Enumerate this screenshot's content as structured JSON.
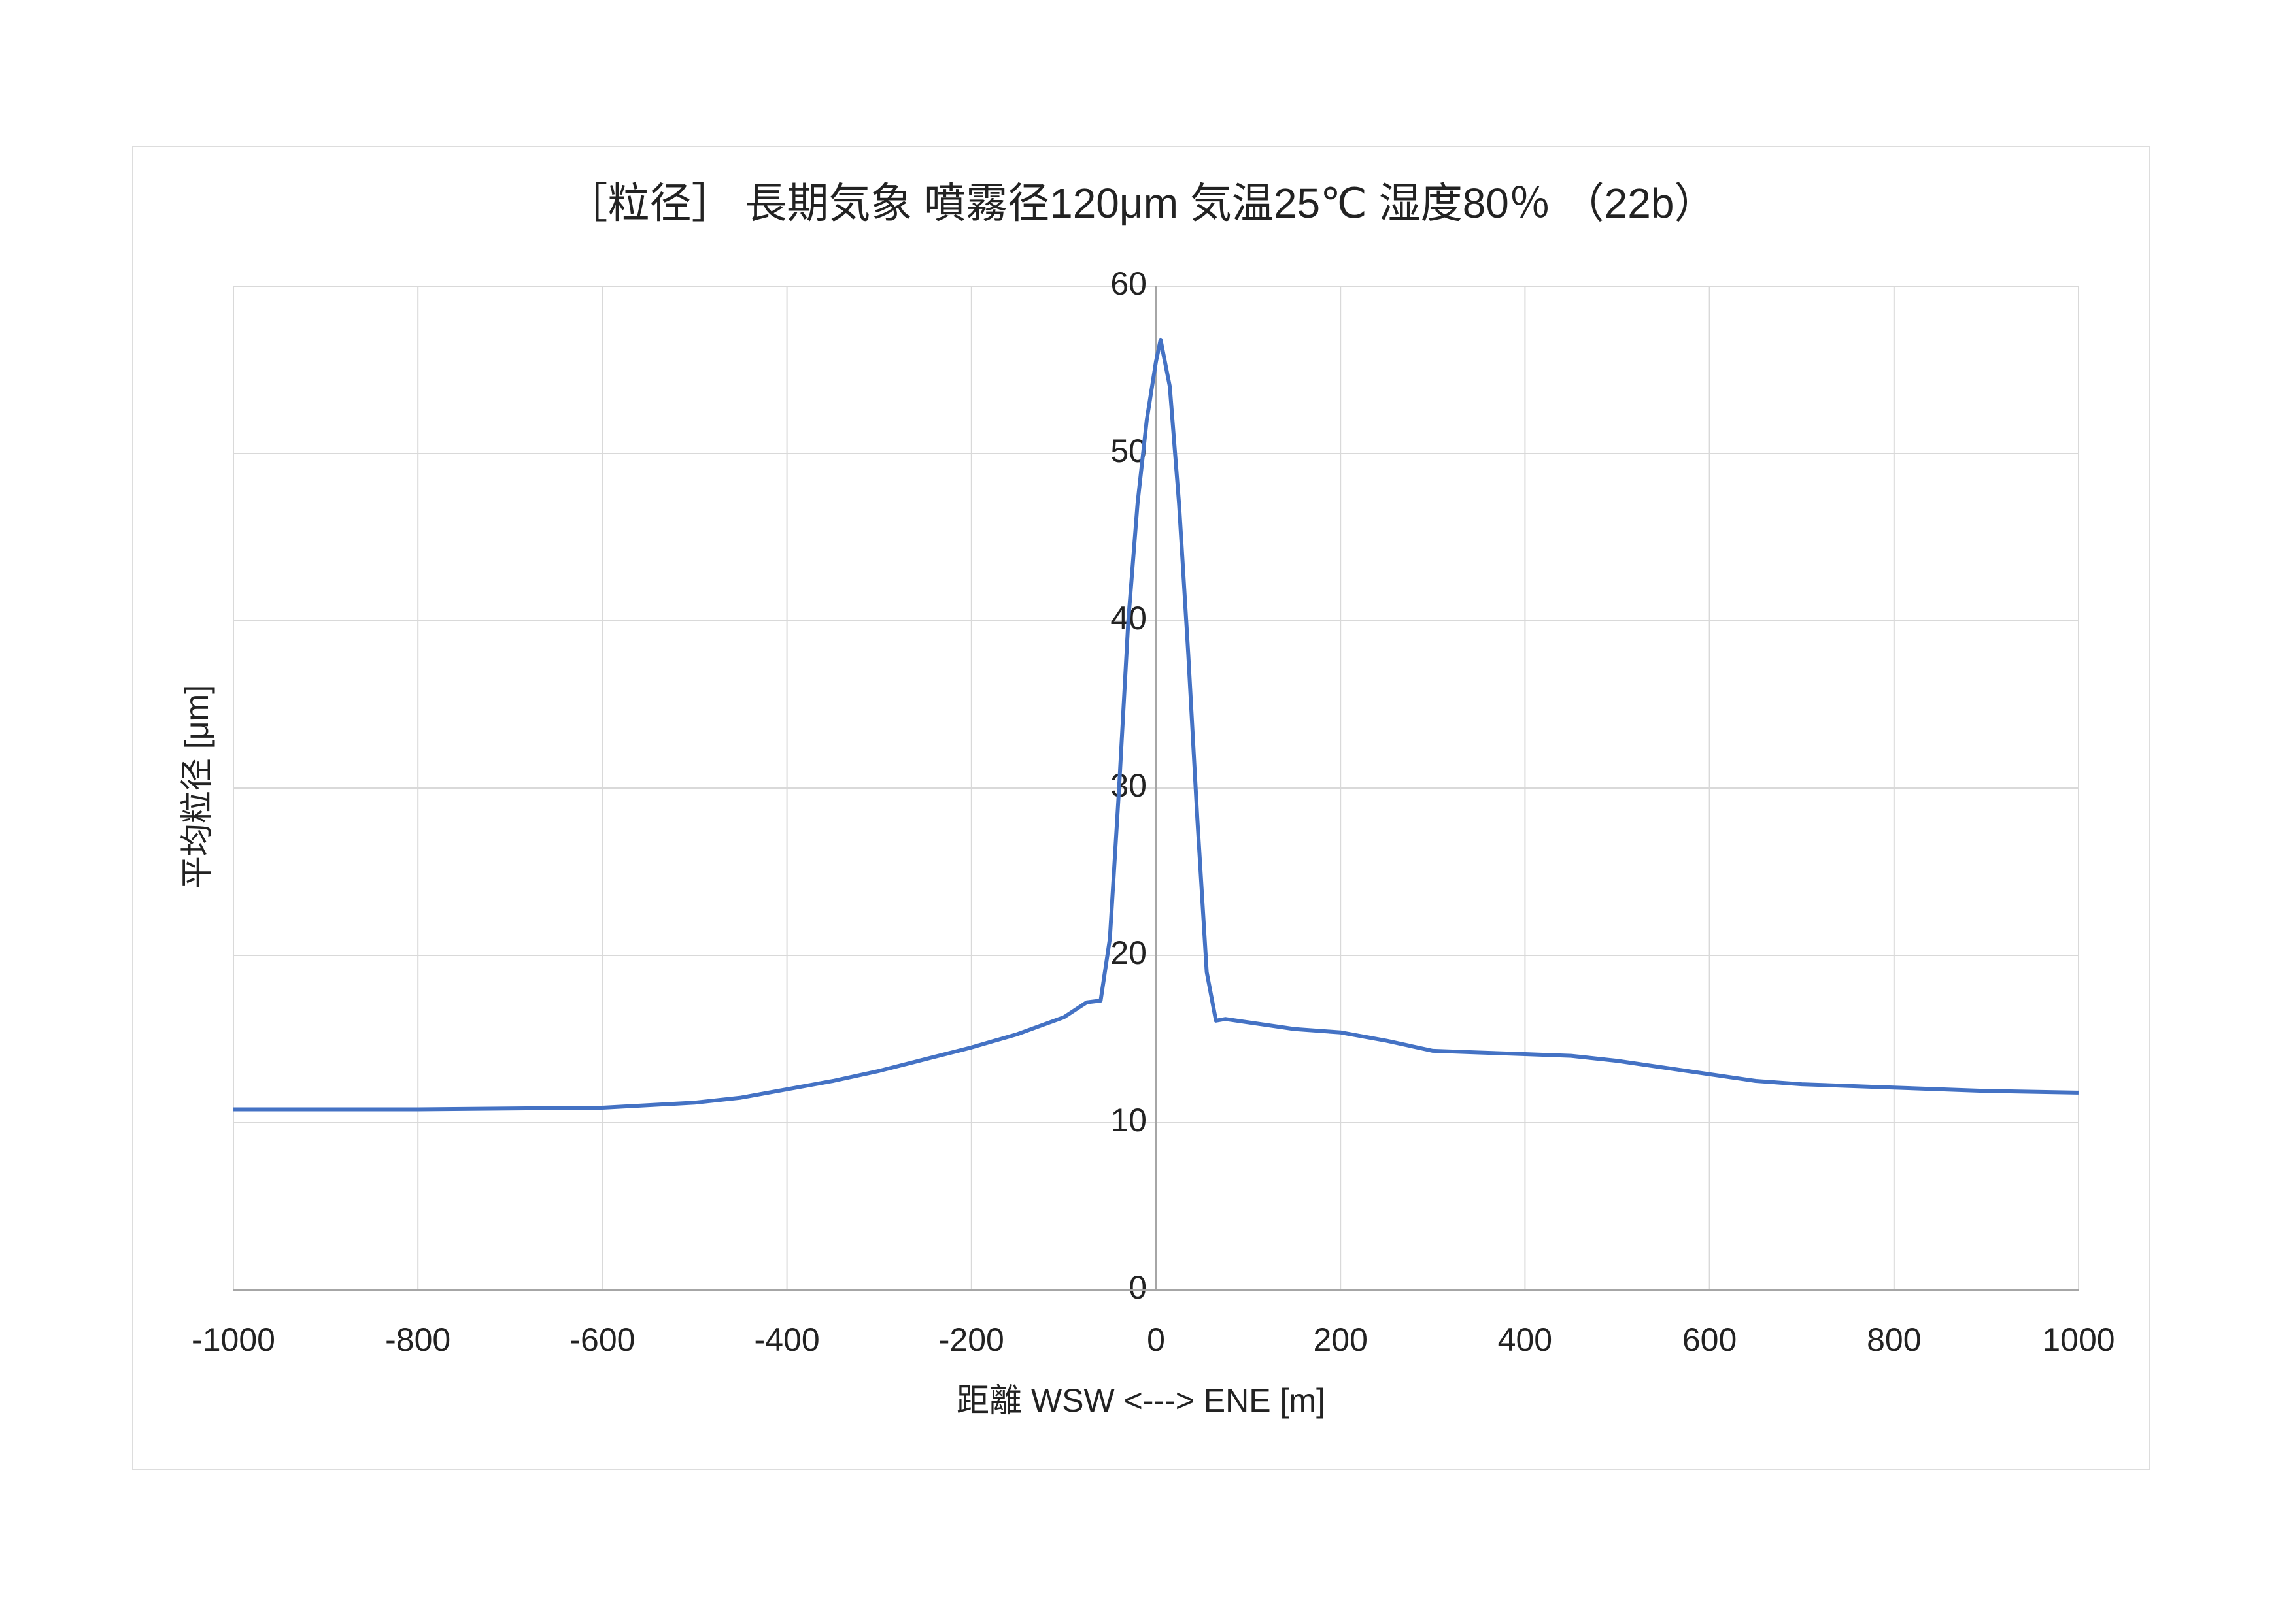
{
  "chart_data": {
    "type": "line",
    "title": "［粒径］ 長期気象  噴霧径120μm  気温25℃  湿度80％  （22b）",
    "x_label": "距離  WSW <---> ENE [m]",
    "y_label": "平均粒径 [μm]",
    "x": [
      -1000,
      -800,
      -600,
      -500,
      -450,
      -400,
      -350,
      -300,
      -250,
      -200,
      -150,
      -100,
      -75,
      -60,
      -50,
      -40,
      -30,
      -20,
      -10,
      0,
      5,
      15,
      25,
      35,
      45,
      55,
      65,
      75,
      100,
      150,
      200,
      250,
      300,
      350,
      400,
      450,
      500,
      550,
      600,
      650,
      700,
      800,
      900,
      1000
    ],
    "series": [
      {
        "name": "平均粒径",
        "color": "#4472c4",
        "values": [
          10.8,
          10.8,
          10.9,
          11.2,
          11.5,
          12.0,
          12.5,
          13.1,
          13.8,
          14.5,
          15.3,
          16.3,
          17.2,
          17.3,
          21,
          30,
          40,
          47,
          52,
          55.5,
          56.8,
          54,
          47,
          38,
          28,
          19,
          16.1,
          16.2,
          16.0,
          15.6,
          15.4,
          14.9,
          14.3,
          14.2,
          14.1,
          14.0,
          13.7,
          13.3,
          12.9,
          12.5,
          12.3,
          12.1,
          11.9,
          11.8
        ]
      }
    ],
    "xlim": [
      -1000,
      1000
    ],
    "xticks": [
      -1000,
      -800,
      -600,
      -400,
      -200,
      0,
      200,
      400,
      600,
      800,
      1000
    ],
    "ylim": [
      0,
      60
    ],
    "yticks": [
      0,
      10,
      20,
      30,
      40,
      50,
      60
    ],
    "grid": true
  }
}
